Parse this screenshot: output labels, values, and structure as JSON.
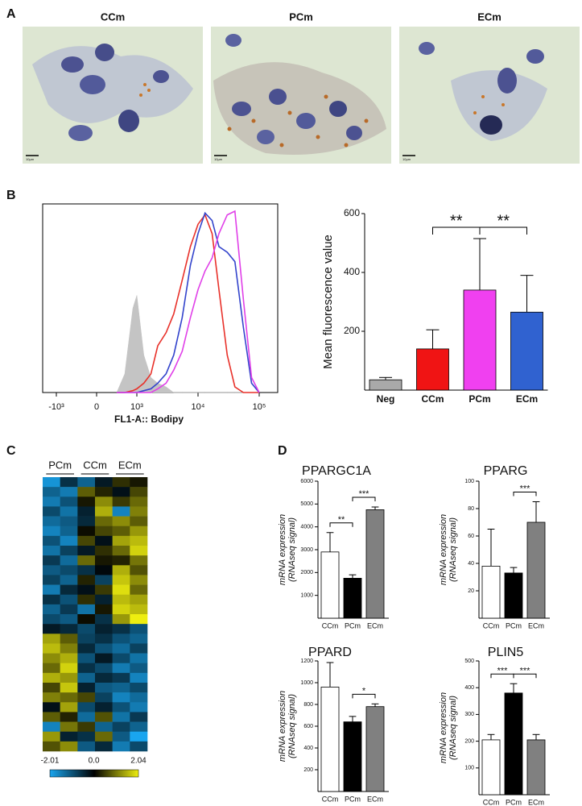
{
  "panel_labels": [
    "A",
    "B",
    "C",
    "D"
  ],
  "micrographs": {
    "labels": [
      "CCm",
      "PCm",
      "ECm"
    ],
    "scale_bar_label": "10µm"
  },
  "chart_data": [
    {
      "type": "density",
      "xlabel": "FL1-A:: Bodipy",
      "xticks": [
        {
          "value": -1000,
          "label": "-10³"
        },
        0,
        {
          "value": 1000,
          "label": "10³"
        },
        {
          "value": 10000,
          "label": "10⁴"
        },
        {
          "value": 100000,
          "label": "10⁵"
        }
      ],
      "ylim": [
        0,
        100
      ],
      "x": [
        500,
        700,
        900,
        1000,
        1300,
        1700,
        2200,
        3000,
        4000,
        5500,
        7500,
        10000,
        13000,
        17000,
        22000,
        30000,
        40000,
        55000,
        75000,
        100000
      ],
      "series": [
        {
          "color": "#c4c4c4",
          "fill": true,
          "values": [
            0,
            10,
            45,
            52,
            20,
            8,
            5,
            3,
            0,
            0,
            0,
            0,
            0,
            0,
            0,
            0,
            0,
            0,
            0,
            0
          ]
        },
        {
          "color": "#e8312a",
          "values": [
            0,
            0,
            1,
            2,
            5,
            10,
            25,
            32,
            42,
            60,
            78,
            90,
            95,
            85,
            55,
            20,
            3,
            0,
            0,
            0
          ]
        },
        {
          "color": "#3344cc",
          "values": [
            0,
            0,
            0,
            0,
            1,
            2,
            5,
            10,
            20,
            40,
            68,
            85,
            96,
            92,
            78,
            75,
            70,
            35,
            5,
            0
          ]
        },
        {
          "color": "#e040e8",
          "values": [
            0,
            0,
            0,
            0,
            0,
            0,
            2,
            5,
            12,
            22,
            40,
            55,
            65,
            72,
            85,
            95,
            97,
            50,
            8,
            0
          ]
        }
      ]
    },
    {
      "type": "bar",
      "ylabel": "Mean fluorescence value",
      "bold_categories": true,
      "categories": [
        "Neg",
        "CCm",
        "PCm",
        "ECm"
      ],
      "colors": [
        "#a9a9a9",
        "#f01414",
        "#f040f0",
        "#3062d0"
      ],
      "values": [
        35,
        140,
        340,
        265
      ],
      "errors": [
        8,
        65,
        175,
        125
      ],
      "ylim": [
        0,
        600
      ],
      "yticks": [
        200,
        400,
        600
      ],
      "significance": [
        {
          "between": [
            "CCm",
            "PCm"
          ],
          "label": "**"
        },
        {
          "between": [
            "PCm",
            "ECm"
          ],
          "label": "**"
        }
      ]
    },
    {
      "type": "heatmap",
      "groups": [
        "PCm",
        "CCm",
        "ECm"
      ],
      "columns_per_group": 2,
      "colorbar_ticks": [
        -2.01,
        {
          "value": 0,
          "label": "0.0"
        },
        2.04
      ],
      "values": [
        [
          -1.8,
          -0.6,
          -1.2,
          -0.3,
          0.4,
          0.2
        ],
        [
          -1.2,
          -1.5,
          0.8,
          0.3,
          -0.2,
          0.6
        ],
        [
          -1.5,
          -1.0,
          0.2,
          1.2,
          0.5,
          0.9
        ],
        [
          -0.9,
          -1.4,
          -0.4,
          1.5,
          -1.6,
          1.1
        ],
        [
          -1.3,
          -1.1,
          -0.5,
          0.9,
          1.2,
          0.8
        ],
        [
          -1.6,
          -1.2,
          0.1,
          0.6,
          0.8,
          1.3
        ],
        [
          -1.0,
          -1.6,
          0.6,
          -0.2,
          1.4,
          1.6
        ],
        [
          -1.4,
          -0.8,
          -0.3,
          0.4,
          0.9,
          1.8
        ],
        [
          -0.7,
          -1.3,
          0.9,
          0.2,
          0.3,
          1.0
        ],
        [
          -1.1,
          -0.9,
          -0.6,
          -0.1,
          1.5,
          0.7
        ],
        [
          -0.8,
          -1.2,
          0.3,
          -0.8,
          1.7,
          1.2
        ],
        [
          -1.5,
          -0.5,
          -0.2,
          0.5,
          1.9,
          0.9
        ],
        [
          -0.6,
          -1.0,
          0.4,
          -0.4,
          1.6,
          1.4
        ],
        [
          -1.2,
          -0.7,
          -1.4,
          0.2,
          1.8,
          1.6
        ],
        [
          -0.9,
          -1.1,
          0.1,
          -0.6,
          1.3,
          2.04
        ],
        [
          -0.3,
          -0.5,
          -0.9,
          -0.4,
          -0.6,
          -1.0
        ],
        [
          1.4,
          0.8,
          -0.8,
          -0.6,
          -1.0,
          -1.2
        ],
        [
          1.6,
          1.1,
          -0.5,
          -1.0,
          -1.3,
          -0.8
        ],
        [
          1.2,
          1.5,
          -1.0,
          -0.3,
          -0.9,
          -1.4
        ],
        [
          0.9,
          1.8,
          -0.6,
          -0.9,
          -1.5,
          -1.1
        ],
        [
          1.5,
          1.3,
          -1.2,
          -0.5,
          -0.7,
          -1.6
        ],
        [
          0.6,
          1.7,
          -0.4,
          -1.1,
          -1.2,
          -0.9
        ],
        [
          1.1,
          0.9,
          0.6,
          -0.8,
          -1.6,
          -1.3
        ],
        [
          -0.2,
          1.4,
          -0.9,
          -0.4,
          -1.0,
          -1.5
        ],
        [
          0.8,
          0.3,
          -1.3,
          0.7,
          -1.4,
          -0.7
        ],
        [
          -1.6,
          1.0,
          0.5,
          -1.2,
          -0.8,
          -1.2
        ],
        [
          1.3,
          -0.4,
          -0.6,
          0.9,
          -1.1,
          -2.01
        ],
        [
          0.7,
          1.2,
          -1.1,
          -0.5,
          -1.5,
          -0.9
        ]
      ]
    },
    {
      "type": "bar",
      "title": "PPARGC1A",
      "ylabel": [
        "mRNA expression",
        "(RNAseq signal)"
      ],
      "categories": [
        "CCm",
        "PCm",
        "ECm"
      ],
      "colors": [
        "#ffffff",
        "#000000",
        "#808080"
      ],
      "values": [
        2900,
        1750,
        4750
      ],
      "errors": [
        850,
        150,
        120
      ],
      "ylim": [
        0,
        6000
      ],
      "yticks": [
        1000,
        2000,
        3000,
        4000,
        5000,
        6000
      ],
      "significance": [
        {
          "between": [
            "CCm",
            "PCm"
          ],
          "label": "**"
        },
        {
          "between": [
            "PCm",
            "ECm"
          ],
          "label": "***"
        }
      ]
    },
    {
      "type": "bar",
      "title": "PPARG",
      "ylabel": [
        "mRNA expression",
        "(RNAseq signal)"
      ],
      "categories": [
        "CCm",
        "PCm",
        "ECm"
      ],
      "colors": [
        "#ffffff",
        "#000000",
        "#808080"
      ],
      "values": [
        38,
        33,
        70
      ],
      "errors": [
        27,
        4,
        15
      ],
      "ylim": [
        0,
        100
      ],
      "yticks": [
        20,
        40,
        60,
        80,
        100
      ],
      "significance": [
        {
          "between": [
            "PCm",
            "ECm"
          ],
          "label": "***"
        }
      ]
    },
    {
      "type": "bar",
      "title": "PPARD",
      "ylabel": [
        "mRNA expression",
        "(RNAseq signal)"
      ],
      "categories": [
        "CCm",
        "PCm",
        "ECm"
      ],
      "colors": [
        "#ffffff",
        "#000000",
        "#808080"
      ],
      "values": [
        960,
        640,
        780
      ],
      "errors": [
        225,
        50,
        25
      ],
      "ylim": [
        0,
        1200
      ],
      "yticks": [
        200,
        400,
        600,
        800,
        1000,
        1200
      ],
      "significance": [
        {
          "between": [
            "PCm",
            "ECm"
          ],
          "label": "*"
        }
      ]
    },
    {
      "type": "bar",
      "title": "PLIN5",
      "ylabel": [
        "mRNA expression",
        "(RNAseq signal)"
      ],
      "categories": [
        "CCm",
        "PCm",
        "ECm"
      ],
      "colors": [
        "#ffffff",
        "#000000",
        "#808080"
      ],
      "values": [
        205,
        380,
        205
      ],
      "errors": [
        20,
        35,
        20
      ],
      "ylim": [
        0,
        500
      ],
      "yticks": [
        100,
        200,
        300,
        400,
        500
      ],
      "significance": [
        {
          "between": [
            "CCm",
            "PCm"
          ],
          "label": "***"
        },
        {
          "between": [
            "PCm",
            "ECm"
          ],
          "label": "***"
        }
      ]
    }
  ]
}
